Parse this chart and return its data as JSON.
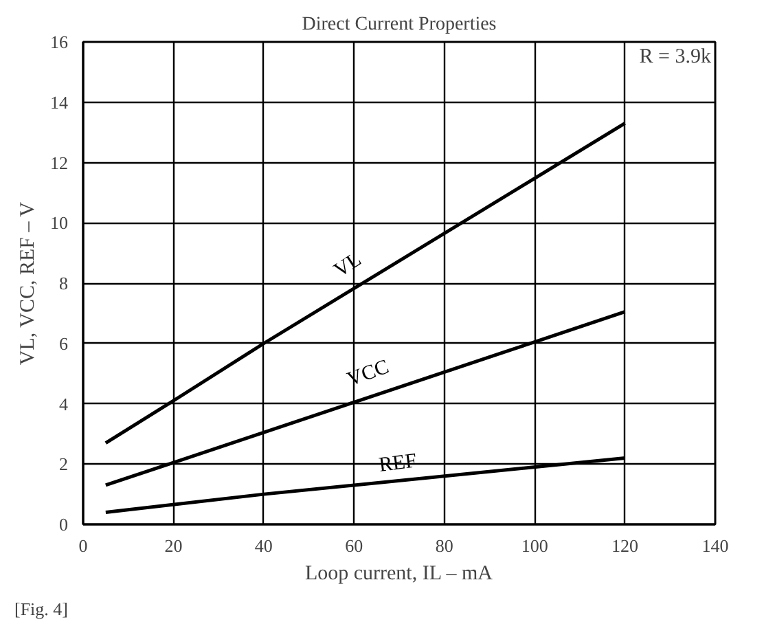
{
  "chart_data": {
    "type": "line",
    "title": "Direct Current Properties",
    "xlabel": "Loop current, IL – mA",
    "ylabel": "VL, VCC, REF – V",
    "xlim": [
      0,
      140
    ],
    "xticks": [
      0,
      20,
      40,
      60,
      80,
      100,
      120,
      140
    ],
    "ylim": [
      0,
      16
    ],
    "yticks": [
      0,
      2,
      4,
      6,
      8,
      10,
      12,
      14,
      16
    ],
    "grid": true,
    "color": "#000000",
    "series": [
      {
        "name": "VL",
        "x": [
          5,
          20,
          40,
          120
        ],
        "values": [
          2.7,
          4.1,
          6.0,
          13.3
        ]
      },
      {
        "name": "VCC",
        "x": [
          5,
          20,
          60,
          100,
          120
        ],
        "values": [
          1.3,
          2.05,
          4.05,
          6.05,
          7.05
        ]
      },
      {
        "name": "REF",
        "x": [
          5,
          40,
          120
        ],
        "values": [
          0.4,
          1.0,
          2.2
        ]
      }
    ],
    "annotations": [
      "R = 3.9k",
      "[Fig. 4]"
    ]
  }
}
